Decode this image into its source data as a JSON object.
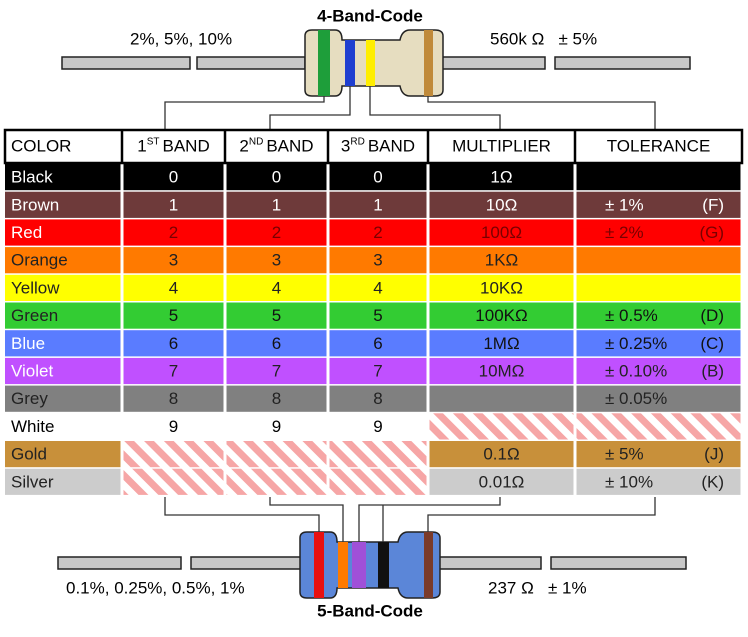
{
  "top": {
    "title": "4-Band-Code",
    "left_label": "2%, 5%, 10%",
    "right_label": "560k Ω   ± 5%"
  },
  "table": {
    "header": [
      {
        "word": "COLOR"
      },
      {
        "number": "1",
        "suffix": "ST",
        "word": "BAND"
      },
      {
        "number": "2",
        "suffix": "ND",
        "word": "BAND"
      },
      {
        "number": "3",
        "suffix": "RD",
        "word": "BAND"
      },
      {
        "word": "MULTIPLIER"
      },
      {
        "word": "TOLERANCE"
      }
    ],
    "rows": [
      [
        "Black",
        "0",
        "0",
        "0",
        "1Ω",
        null,
        null
      ],
      [
        "Brown",
        "1",
        "1",
        "1",
        "10Ω",
        "± 1%",
        "(F)"
      ],
      [
        "Red",
        "2",
        "2",
        "2",
        "100Ω",
        "± 2%",
        "(G)"
      ],
      [
        "Orange",
        "3",
        "3",
        "3",
        "1KΩ",
        null,
        null
      ],
      [
        "Yellow",
        "4",
        "4",
        "4",
        "10KΩ",
        null,
        null
      ],
      [
        "Green",
        "5",
        "5",
        "5",
        "100KΩ",
        "± 0.5%",
        "(D)"
      ],
      [
        "Blue",
        "6",
        "6",
        "6",
        "1MΩ",
        "± 0.25%",
        "(C)"
      ],
      [
        "Violet",
        "7",
        "7",
        "7",
        "10MΩ",
        "± 0.10%",
        "(B)"
      ],
      [
        "Grey",
        "8",
        "8",
        "8",
        null,
        "± 0.05%",
        null
      ],
      [
        "White",
        "9",
        "9",
        "9",
        null,
        null,
        null
      ],
      [
        "Gold",
        null,
        null,
        null,
        "0.1Ω",
        "± 5%",
        "(J)"
      ],
      [
        "Silver",
        null,
        null,
        null,
        "0.01Ω",
        "± 10%",
        "(K)"
      ]
    ]
  },
  "bottom": {
    "title": "5-Band-Code",
    "left_label": "0.1%, 0.25%, 0.5%, 1%",
    "right_label": "237 Ω   ± 1%"
  }
}
